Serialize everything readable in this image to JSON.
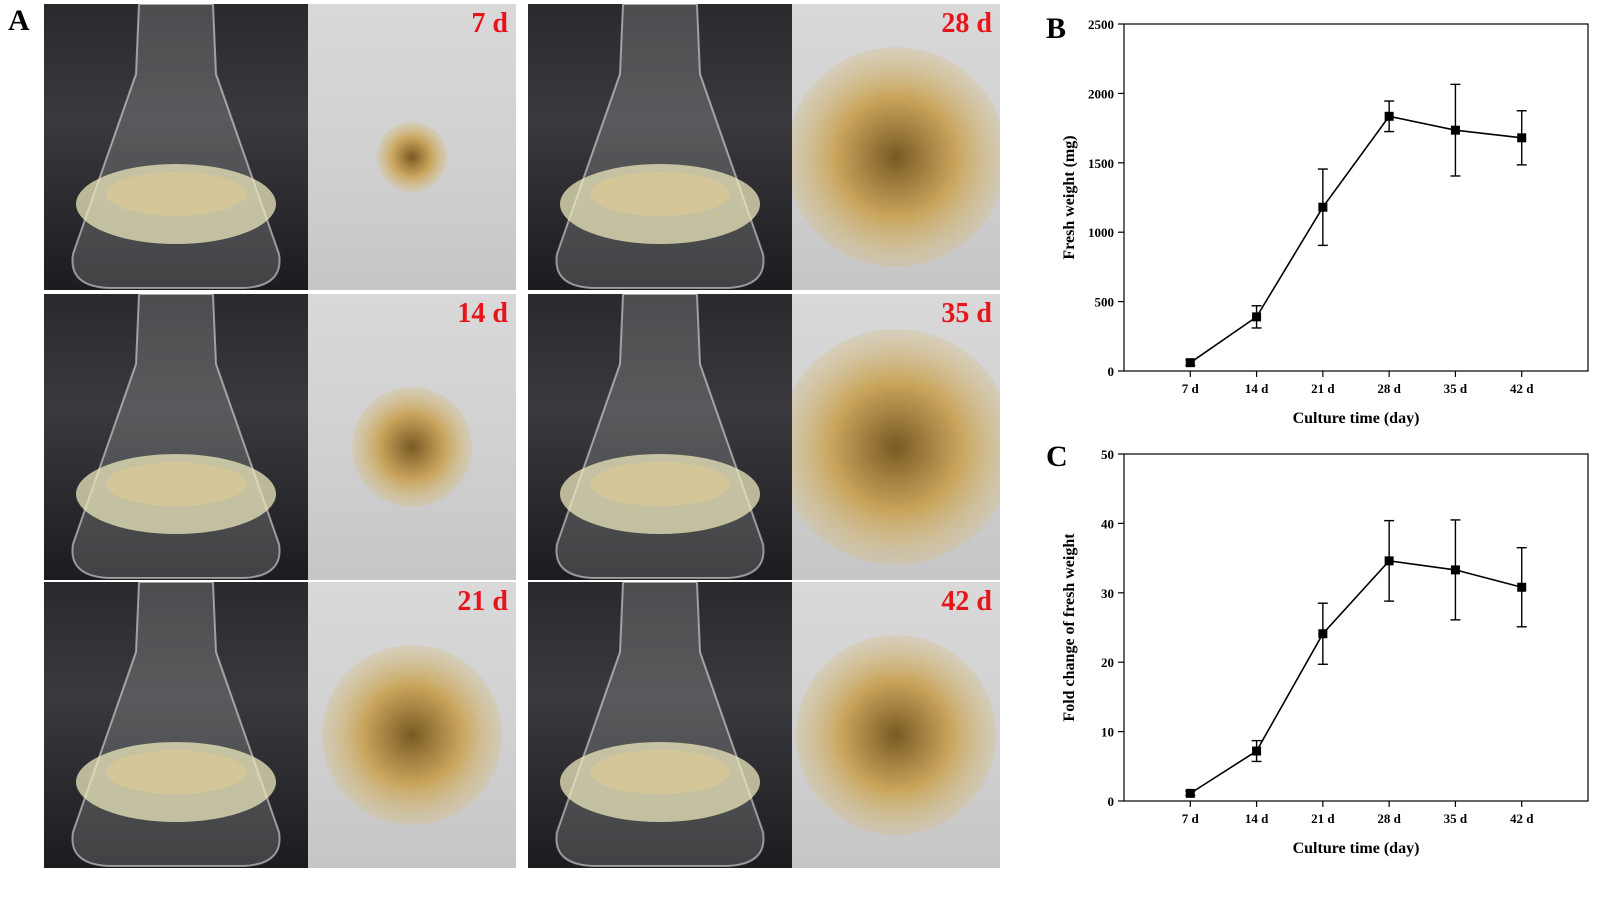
{
  "panels": {
    "a_label": "A",
    "b_label": "B",
    "c_label": "C"
  },
  "photos": [
    {
      "day": "7 d",
      "col": 0,
      "row": 0
    },
    {
      "day": "14 d",
      "col": 0,
      "row": 1
    },
    {
      "day": "21 d",
      "col": 0,
      "row": 2
    },
    {
      "day": "28 d",
      "col": 1,
      "row": 0
    },
    {
      "day": "35 d",
      "col": 1,
      "row": 1
    },
    {
      "day": "42 d",
      "col": 1,
      "row": 2
    }
  ],
  "chart_data": [
    {
      "type": "line",
      "title": "",
      "xlabel": "Culture time (day)",
      "ylabel": "Fresh weight (mg)",
      "categories": [
        "7 d",
        "14 d",
        "21 d",
        "28 d",
        "35 d",
        "42 d"
      ],
      "values": [
        60,
        390,
        1180,
        1835,
        1735,
        1680
      ],
      "errors": [
        20,
        80,
        275,
        110,
        330,
        195
      ],
      "ylim": [
        0,
        2500
      ],
      "yticks": [
        0,
        500,
        1000,
        1500,
        2000,
        2500
      ],
      "grid": false,
      "legend": "none"
    },
    {
      "type": "line",
      "title": "",
      "xlabel": "Culture time (day)",
      "ylabel": "Fold change of fresh weight",
      "categories": [
        "7 d",
        "14 d",
        "21 d",
        "28 d",
        "35 d",
        "42 d"
      ],
      "values": [
        1.1,
        7.2,
        24.1,
        34.6,
        33.3,
        30.8
      ],
      "errors": [
        0.3,
        1.5,
        4.4,
        5.8,
        7.2,
        5.7
      ],
      "ylim": [
        0,
        50
      ],
      "yticks": [
        0,
        10,
        20,
        30,
        40,
        50
      ],
      "grid": false,
      "legend": "none"
    }
  ]
}
